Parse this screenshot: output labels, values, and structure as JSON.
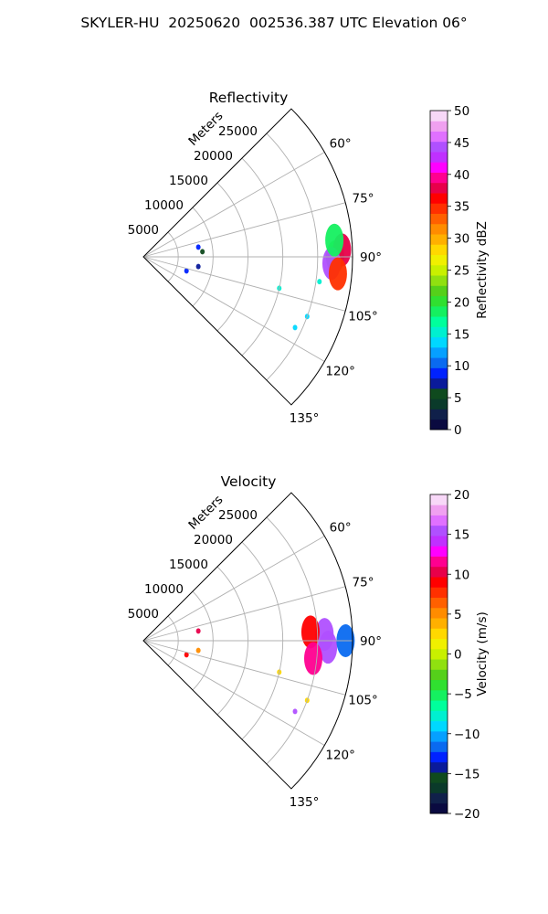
{
  "suptitle": "SKYLER-HU  20250620  002536.387 UTC Elevation 06°",
  "chart_data": [
    {
      "type": "heatmap",
      "projection": "polar-sector",
      "title": "Reflectivity",
      "radial_axis_label": "Meters",
      "radial_ticks": [
        5000,
        10000,
        15000,
        20000,
        25000
      ],
      "radial_tick_labels": [
        "5000",
        "10000",
        "15000",
        "20000",
        "25000"
      ],
      "radial_range": [
        0,
        30000
      ],
      "azimuth_range_deg": [
        45,
        135
      ],
      "azimuth_ticks": [
        "60°",
        "75°",
        "90°",
        "105°",
        "120°",
        "135°"
      ],
      "grid": true,
      "colorbar": {
        "label": "Reflectivity dBZ",
        "range": [
          0,
          50
        ],
        "ticks": [
          "0",
          "5",
          "10",
          "15",
          "20",
          "25",
          "30",
          "35",
          "40",
          "45",
          "50"
        ],
        "colors": [
          "#0a0a40",
          "#10204a",
          "#0a3a2a",
          "#0f4a1e",
          "#0a1a9a",
          "#0022ff",
          "#0a6af0",
          "#06a0ff",
          "#00d8ff",
          "#00f0d0",
          "#00ff9c",
          "#15f060",
          "#30e030",
          "#55d01a",
          "#90e010",
          "#c8f000",
          "#f0f000",
          "#ffd800",
          "#ffb000",
          "#ff8c00",
          "#ff6000",
          "#ff3000",
          "#ff0000",
          "#e8004a",
          "#ff0090",
          "#ff00ff",
          "#c030ff",
          "#b050ff",
          "#e070ff",
          "#f0a0f0",
          "#f8d8f8"
        ]
      },
      "echoes": [
        {
          "az": 90,
          "r_km": 27.5,
          "dbz": 22
        },
        {
          "az": 88,
          "r_km": 28.5,
          "dbz": 38
        },
        {
          "az": 92,
          "r_km": 27.0,
          "dbz": 45
        },
        {
          "az": 95,
          "r_km": 28.0,
          "dbz": 35
        },
        {
          "az": 85,
          "r_km": 27.5,
          "dbz": 18
        },
        {
          "az": 98,
          "r_km": 25.5,
          "dbz": 15
        },
        {
          "az": 103,
          "r_km": 20.0,
          "dbz": 16
        },
        {
          "az": 110,
          "r_km": 25.0,
          "dbz": 14
        },
        {
          "az": 115,
          "r_km": 24.0,
          "dbz": 14
        },
        {
          "az": 80,
          "r_km": 8.0,
          "dbz": 9
        },
        {
          "az": 85,
          "r_km": 8.5,
          "dbz": 6
        },
        {
          "az": 100,
          "r_km": 8.0,
          "dbz": 7
        },
        {
          "az": 108,
          "r_km": 6.5,
          "dbz": 9
        }
      ]
    },
    {
      "type": "heatmap",
      "projection": "polar-sector",
      "title": "Velocity",
      "radial_axis_label": "Meters",
      "radial_ticks": [
        5000,
        10000,
        15000,
        20000,
        25000
      ],
      "radial_tick_labels": [
        "5000",
        "10000",
        "15000",
        "20000",
        "25000"
      ],
      "radial_range": [
        0,
        30000
      ],
      "azimuth_range_deg": [
        45,
        135
      ],
      "azimuth_ticks": [
        "60°",
        "75°",
        "90°",
        "105°",
        "120°",
        "135°"
      ],
      "grid": true,
      "colorbar": {
        "label": "Velocity (m/s)",
        "range": [
          -20,
          20
        ],
        "ticks": [
          "−20",
          "−15",
          "−10",
          "−5",
          "0",
          "5",
          "10",
          "15",
          "20"
        ],
        "colors": [
          "#0a0a40",
          "#10204a",
          "#0a3a2a",
          "#0f4a1e",
          "#0a1a9a",
          "#0022ff",
          "#0a6af0",
          "#06a0ff",
          "#00d8ff",
          "#00f0d0",
          "#00ff9c",
          "#15f060",
          "#30e030",
          "#55d01a",
          "#90e010",
          "#c8f000",
          "#f0f000",
          "#ffd800",
          "#ffb000",
          "#ff8c00",
          "#ff6000",
          "#ff3000",
          "#ff0000",
          "#e8004a",
          "#ff0090",
          "#ff00ff",
          "#c030ff",
          "#b050ff",
          "#e070ff",
          "#f0a0f0",
          "#f8d8f8"
        ]
      },
      "echoes": [
        {
          "az": 88,
          "r_km": 26.0,
          "v": 15
        },
        {
          "az": 92,
          "r_km": 26.5,
          "v": 16
        },
        {
          "az": 90,
          "r_km": 29.0,
          "v": -12
        },
        {
          "az": 87,
          "r_km": 24.0,
          "v": 9
        },
        {
          "az": 96,
          "r_km": 24.5,
          "v": 12
        },
        {
          "az": 103,
          "r_km": 20.0,
          "v": 2
        },
        {
          "az": 110,
          "r_km": 25.0,
          "v": 3
        },
        {
          "az": 115,
          "r_km": 24.0,
          "v": 16
        },
        {
          "az": 80,
          "r_km": 8.0,
          "v": 10
        },
        {
          "az": 100,
          "r_km": 8.0,
          "v": 5
        },
        {
          "az": 108,
          "r_km": 6.5,
          "v": 9
        }
      ]
    }
  ]
}
